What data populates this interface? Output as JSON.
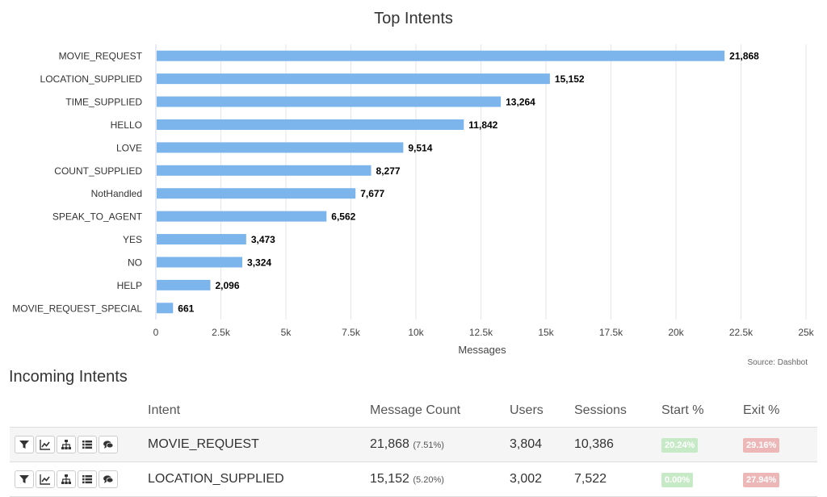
{
  "chart_data": {
    "type": "bar",
    "orientation": "horizontal",
    "title": "Top Intents",
    "xlabel": "Messages",
    "ylabel": "",
    "categories": [
      "MOVIE_REQUEST",
      "LOCATION_SUPPLIED",
      "TIME_SUPPLIED",
      "HELLO",
      "LOVE",
      "COUNT_SUPPLIED",
      "NotHandled",
      "SPEAK_TO_AGENT",
      "YES",
      "NO",
      "HELP",
      "MOVIE_REQUEST_SPECIAL"
    ],
    "values": [
      21868,
      15152,
      13264,
      11842,
      9514,
      8277,
      7677,
      6562,
      3473,
      3324,
      2096,
      661
    ],
    "value_labels": [
      "21,868",
      "15,152",
      "13,264",
      "11,842",
      "9,514",
      "8,277",
      "7,677",
      "6,562",
      "3,473",
      "3,324",
      "2,096",
      "661"
    ],
    "xlim": [
      0,
      25000
    ],
    "xticks": [
      0,
      2500,
      5000,
      7500,
      10000,
      12500,
      15000,
      17500,
      20000,
      22500,
      25000
    ],
    "xtick_labels": [
      "0",
      "2.5k",
      "5k",
      "7.5k",
      "10k",
      "12.5k",
      "15k",
      "17.5k",
      "20k",
      "22.5k",
      "25k"
    ],
    "grid": "vertical",
    "bar_color": "#7cb5ec",
    "credit": "Source: Dashbot"
  },
  "table": {
    "title": "Incoming Intents",
    "headers": {
      "actions": "",
      "intent": "Intent",
      "message_count": "Message Count",
      "users": "Users",
      "sessions": "Sessions",
      "start": "Start %",
      "exit": "Exit %"
    },
    "action_icons": [
      "filter-icon",
      "line-chart-icon",
      "sitemap-icon",
      "list-icon",
      "comments-icon"
    ],
    "rows": [
      {
        "intent": "MOVIE_REQUEST",
        "count": "21,868",
        "pct": "(7.51%)",
        "users": "3,804",
        "sessions": "10,386",
        "start": "20.24%",
        "exit": "29.16%"
      },
      {
        "intent": "LOCATION_SUPPLIED",
        "count": "15,152",
        "pct": "(5.20%)",
        "users": "3,002",
        "sessions": "7,522",
        "start": "0.00%",
        "exit": "27.94%"
      }
    ],
    "colors": {
      "start_badge": "#c6e9c6",
      "exit_badge": "#eeb7b7"
    }
  }
}
